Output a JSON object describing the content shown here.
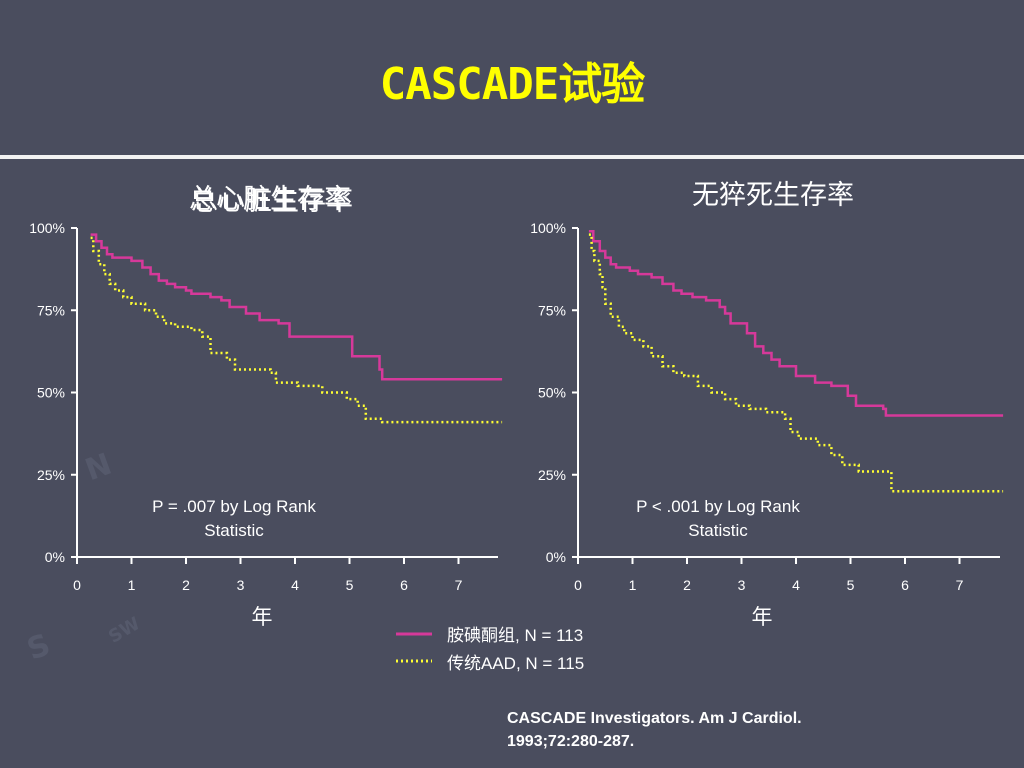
{
  "slide": {
    "title": "CASCADE试验",
    "citation_line1": "CASCADE Investigators.  Am J Cardiol.",
    "citation_line2": "1993;72:280-287."
  },
  "colors": {
    "background": "#4a4d5e",
    "title": "#ffff00",
    "amiodarone": "#d6399a",
    "conventional": "#ffff33"
  },
  "background_marks": {
    "n": "N",
    "s": "S",
    "sw": "SW"
  },
  "legend": [
    {
      "label": "胺碘酮组, N = 113",
      "style": "solid",
      "color": "#d6399a"
    },
    {
      "label": "传统AAD, N = 115",
      "style": "dotted",
      "color": "#ffff33"
    }
  ],
  "chart_data": [
    {
      "type": "line",
      "subtype": "kaplan-meier step",
      "title": "总心脏生存率",
      "xlabel": "年",
      "ylabel": "",
      "x_ticks": [
        "0",
        "1",
        "2",
        "3",
        "4",
        "5",
        "6",
        "7"
      ],
      "y_ticks": [
        "0%",
        "25%",
        "50%",
        "75%",
        "100%"
      ],
      "xlim": [
        0,
        7.8
      ],
      "ylim": [
        0,
        100
      ],
      "annotation_line1": "P = .007 by Log Rank",
      "annotation_line2": "Statistic",
      "series": [
        {
          "name": "胺碘酮组, N = 113",
          "style": "solid",
          "points": [
            [
              0.25,
              98
            ],
            [
              0.35,
              96
            ],
            [
              0.45,
              94
            ],
            [
              0.55,
              92
            ],
            [
              0.65,
              91
            ],
            [
              0.9,
              91
            ],
            [
              1.0,
              90
            ],
            [
              1.2,
              88
            ],
            [
              1.35,
              86
            ],
            [
              1.5,
              84
            ],
            [
              1.65,
              83
            ],
            [
              1.8,
              82
            ],
            [
              2.0,
              81
            ],
            [
              2.1,
              80
            ],
            [
              2.45,
              79
            ],
            [
              2.65,
              78
            ],
            [
              2.8,
              76
            ],
            [
              3.1,
              74
            ],
            [
              3.35,
              72
            ],
            [
              3.7,
              71
            ],
            [
              3.9,
              67
            ],
            [
              5.0,
              67
            ],
            [
              5.05,
              61
            ],
            [
              5.55,
              57
            ],
            [
              5.6,
              54
            ],
            [
              7.8,
              54
            ]
          ]
        },
        {
          "name": "传统AAD, N = 115",
          "style": "dotted",
          "points": [
            [
              0.25,
              97
            ],
            [
              0.3,
              93
            ],
            [
              0.4,
              89
            ],
            [
              0.5,
              86
            ],
            [
              0.6,
              83
            ],
            [
              0.7,
              81
            ],
            [
              0.85,
              79
            ],
            [
              1.0,
              77
            ],
            [
              1.25,
              75
            ],
            [
              1.45,
              73
            ],
            [
              1.6,
              71
            ],
            [
              1.8,
              70
            ],
            [
              2.1,
              69
            ],
            [
              2.3,
              67
            ],
            [
              2.45,
              62
            ],
            [
              2.75,
              60
            ],
            [
              2.9,
              57
            ],
            [
              3.55,
              56
            ],
            [
              3.65,
              53
            ],
            [
              4.05,
              52
            ],
            [
              4.5,
              50
            ],
            [
              4.95,
              48
            ],
            [
              5.15,
              46
            ],
            [
              5.3,
              42
            ],
            [
              5.6,
              41
            ],
            [
              7.8,
              41
            ]
          ]
        }
      ]
    },
    {
      "type": "line",
      "subtype": "kaplan-meier step",
      "title": "无猝死生存率",
      "xlabel": "年",
      "ylabel": "",
      "x_ticks": [
        "0",
        "1",
        "2",
        "3",
        "4",
        "5",
        "6",
        "7"
      ],
      "y_ticks": [
        "0%",
        "25%",
        "50%",
        "75%",
        "100%"
      ],
      "xlim": [
        0,
        7.8
      ],
      "ylim": [
        0,
        100
      ],
      "annotation_line1": "P < .001 by Log Rank",
      "annotation_line2": "Statistic",
      "series": [
        {
          "name": "胺碘酮组, N = 113",
          "style": "solid",
          "points": [
            [
              0.2,
              99
            ],
            [
              0.28,
              96
            ],
            [
              0.4,
              93
            ],
            [
              0.5,
              91
            ],
            [
              0.6,
              89
            ],
            [
              0.7,
              88
            ],
            [
              0.95,
              87
            ],
            [
              1.1,
              86
            ],
            [
              1.35,
              85
            ],
            [
              1.55,
              83
            ],
            [
              1.75,
              81
            ],
            [
              1.9,
              80
            ],
            [
              2.1,
              79
            ],
            [
              2.35,
              78
            ],
            [
              2.6,
              76
            ],
            [
              2.7,
              74
            ],
            [
              2.8,
              71
            ],
            [
              2.95,
              71
            ],
            [
              3.1,
              68
            ],
            [
              3.25,
              64
            ],
            [
              3.4,
              62
            ],
            [
              3.55,
              60
            ],
            [
              3.7,
              58
            ],
            [
              4.0,
              55
            ],
            [
              4.35,
              53
            ],
            [
              4.65,
              52
            ],
            [
              4.95,
              49
            ],
            [
              5.1,
              46
            ],
            [
              5.6,
              45
            ],
            [
              5.65,
              43
            ],
            [
              7.8,
              43
            ]
          ]
        },
        {
          "name": "传统AAD, N = 115",
          "style": "dotted",
          "points": [
            [
              0.2,
              98
            ],
            [
              0.25,
              93
            ],
            [
              0.3,
              90
            ],
            [
              0.4,
              86
            ],
            [
              0.45,
              82
            ],
            [
              0.5,
              77
            ],
            [
              0.6,
              73
            ],
            [
              0.75,
              70
            ],
            [
              0.85,
              68
            ],
            [
              1.0,
              66
            ],
            [
              1.2,
              64
            ],
            [
              1.35,
              61
            ],
            [
              1.55,
              58
            ],
            [
              1.75,
              56
            ],
            [
              1.95,
              55
            ],
            [
              2.2,
              52
            ],
            [
              2.45,
              50
            ],
            [
              2.7,
              48
            ],
            [
              2.9,
              46
            ],
            [
              3.15,
              45
            ],
            [
              3.45,
              44
            ],
            [
              3.8,
              42
            ],
            [
              3.9,
              38
            ],
            [
              4.05,
              36
            ],
            [
              4.4,
              34
            ],
            [
              4.65,
              31
            ],
            [
              4.85,
              28
            ],
            [
              5.15,
              26
            ],
            [
              5.75,
              20
            ],
            [
              7.8,
              20
            ]
          ]
        }
      ]
    }
  ]
}
